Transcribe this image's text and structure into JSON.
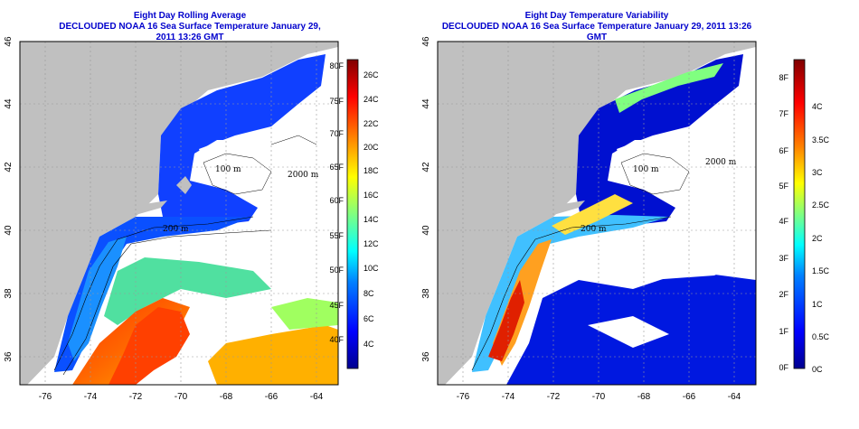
{
  "left_panel": {
    "title_line1": "Eight Day Rolling Average",
    "title_line2": "DECLOUDED NOAA 16 Sea Surface Temperature January 29, 2011 13:26 GMT",
    "colorbar_f": [
      "80F",
      "75F",
      "70F",
      "65F",
      "60F",
      "55F",
      "50F",
      "45F",
      "40F"
    ],
    "colorbar_c": [
      "26C",
      "24C",
      "22C",
      "20C",
      "18C",
      "16C",
      "14C",
      "12C",
      "10C",
      "8C",
      "6C",
      "4C"
    ]
  },
  "right_panel": {
    "title_line1": "Eight Day Temperature Variability",
    "title_line2": "DECLOUDED NOAA 16 Sea Surface Temperature January 29, 2011 13:26 GMT",
    "colorbar_f": [
      "8F",
      "7F",
      "6F",
      "5F",
      "4F",
      "3F",
      "2F",
      "1F",
      "0F"
    ],
    "colorbar_c": [
      "4C",
      "3.5C",
      "3C",
      "2.5C",
      "2C",
      "1.5C",
      "1C",
      "0.5C",
      "0C"
    ]
  },
  "axes": {
    "x_ticks": [
      "-76",
      "-74",
      "-72",
      "-70",
      "-68",
      "-66",
      "-64"
    ],
    "y_ticks": [
      "46",
      "44",
      "42",
      "40",
      "38",
      "36"
    ]
  },
  "contour_labels": [
    "100 m",
    "2000 m",
    "200 m",
    "200 m"
  ],
  "colors": {
    "title": "#0000cc",
    "land": "#c0c0c0",
    "cloud": "#ffffff"
  }
}
